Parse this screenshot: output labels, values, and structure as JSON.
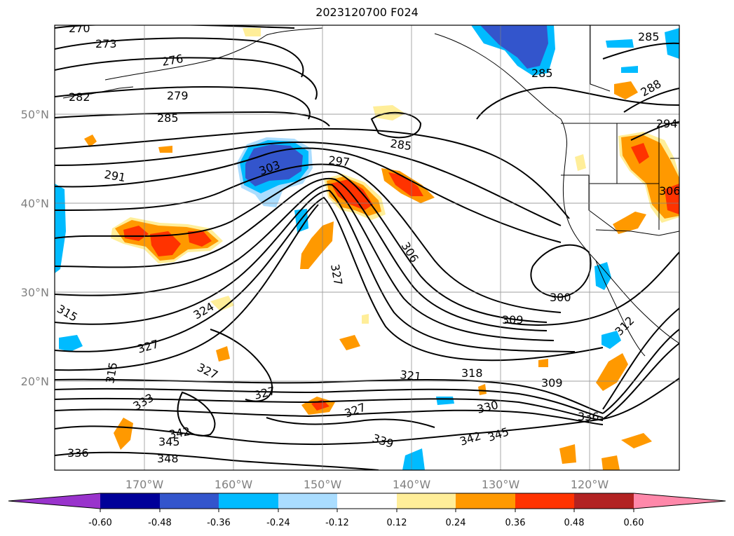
{
  "title": "2023120700 F024",
  "latitude_labels": [
    "50°N",
    "40°N",
    "30°N",
    "20°N"
  ],
  "longitude_labels": [
    "170°W",
    "160°W",
    "150°W",
    "140°W",
    "130°W",
    "120°W"
  ],
  "colorbar": {
    "tick_labels": [
      "-0.60",
      "-0.48",
      "-0.36",
      "-0.24",
      "-0.12",
      "0.12",
      "0.24",
      "0.36",
      "0.48",
      "0.60"
    ],
    "colors": {
      "under": "#9933cc",
      "b1": "#000099",
      "b2": "#3355cc",
      "b3": "#00bbff",
      "b4": "#aaddff",
      "b5": "#ffffff",
      "b6": "#ffee99",
      "b7": "#ff9900",
      "b8": "#ff3300",
      "b9": "#b22222",
      "over": "#ff88aa"
    }
  },
  "contour_labels": [
    "270",
    "273",
    "276",
    "279",
    "282",
    "285",
    "285",
    "285",
    "285",
    "288",
    "294",
    "291",
    "297",
    "303",
    "306",
    "306",
    "300",
    "309",
    "312",
    "315",
    "318",
    "321",
    "324",
    "327",
    "327",
    "327",
    "327",
    "327",
    "330",
    "333",
    "336",
    "336",
    "339",
    "342",
    "342",
    "345",
    "345",
    "348",
    "309",
    "315"
  ]
}
